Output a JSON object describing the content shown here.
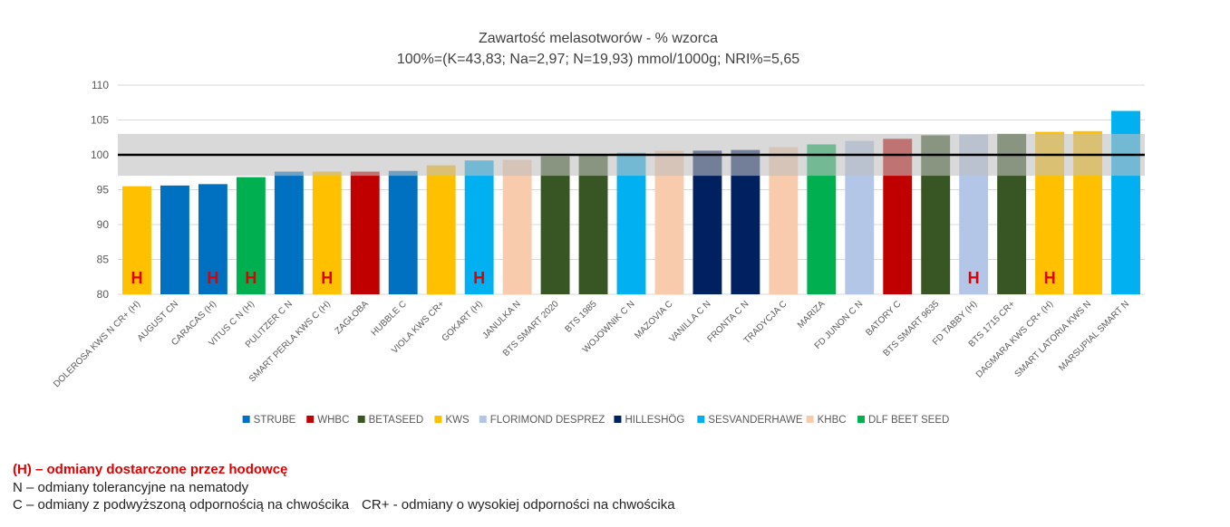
{
  "chart_data": {
    "type": "bar",
    "title": "Zawartość melasotworów - % wzorca",
    "subtitle": "100%=(K=43,83; Na=2,97; N=19,93) mmol/1000g; NRI%=5,65",
    "ylim": [
      80,
      110
    ],
    "yticks": [
      80,
      85,
      90,
      95,
      100,
      105,
      110
    ],
    "grid": true,
    "reference_line": 100,
    "band": [
      97,
      103
    ],
    "legend_position": "bottom",
    "categories": [
      "DOLEROSA KWS N CR+ (H)",
      "AUGUST CN",
      "CARACAS (H)",
      "VITUS C N (H)",
      "PULITZER C N",
      "SMART PERLA KWS C (H)",
      "ZAGŁOBA",
      "HUBBLE C",
      "VIOLA KWS CR+",
      "GOKART (H)",
      "JANULKA N",
      "BTS SMART 2020",
      "BTS 1985",
      "WOJOWNIK C N",
      "MAZOVIA C",
      "VANILLA C N",
      "FRONTA C N",
      "TRADYCJA C",
      "MARIZA",
      "FD JUNON C N",
      "BATORY C",
      "BTS SMART 9635",
      "FD TABBY (H)",
      "BTS 1715 CR+",
      "DAGMARA KWS CR+ (H)",
      "SMART LATORIA KWS N",
      "MARSUPIAL SMART N"
    ],
    "values": [
      95.5,
      95.6,
      95.8,
      96.8,
      97.6,
      97.6,
      97.6,
      97.7,
      98.5,
      99.2,
      99.3,
      99.8,
      99.9,
      100.3,
      100.6,
      100.6,
      100.7,
      101.1,
      101.5,
      102.0,
      102.3,
      102.8,
      102.9,
      103.0,
      103.3,
      103.4,
      106.3
    ],
    "breeders": [
      "KWS",
      "STRUBE",
      "STRUBE",
      "DLF BEET SEED",
      "STRUBE",
      "KWS",
      "WHBC",
      "STRUBE",
      "KWS",
      "SESVANDERHAWE",
      "KHBC",
      "BETASEED",
      "BETASEED",
      "SESVANDERHAWE",
      "KHBC",
      "HILLESHÖG",
      "HILLESHÖG",
      "KHBC",
      "DLF BEET SEED",
      "FLORIMOND DESPREZ",
      "WHBC",
      "BETASEED",
      "FLORIMOND DESPREZ",
      "BETASEED",
      "KWS",
      "KWS",
      "SESVANDERHAWE"
    ],
    "bar_marks": [
      "H",
      "",
      "H",
      "H",
      "",
      "H",
      "",
      "",
      "",
      "H",
      "",
      "",
      "",
      "",
      "",
      "",
      "",
      "",
      "",
      "",
      "",
      "",
      "H",
      "",
      "H",
      "",
      ""
    ],
    "legend": [
      {
        "name": "STRUBE",
        "color": "#0070c0"
      },
      {
        "name": "WHBC",
        "color": "#c00000"
      },
      {
        "name": "BETASEED",
        "color": "#375623"
      },
      {
        "name": "KWS",
        "color": "#ffc000"
      },
      {
        "name": "FLORIMOND DESPREZ",
        "color": "#b4c6e7"
      },
      {
        "name": "HILLESHÖG",
        "color": "#002060"
      },
      {
        "name": "SESVANDERHAWE",
        "color": "#00b0f0"
      },
      {
        "name": "KHBC",
        "color": "#f8cbad"
      },
      {
        "name": "DLF BEET SEED",
        "color": "#00b050"
      }
    ],
    "mark_color": "#e00000"
  },
  "notes": {
    "line1": "(H) – odmiany dostarczone przez hodowcę",
    "line2": "N – odmiany tolerancyjne na nematody",
    "line3a": "C – odmiany z podwyższoną odpornością na chwościka",
    "line3b": "CR+ - odmiany o wysokiej odporności na chwościka"
  }
}
